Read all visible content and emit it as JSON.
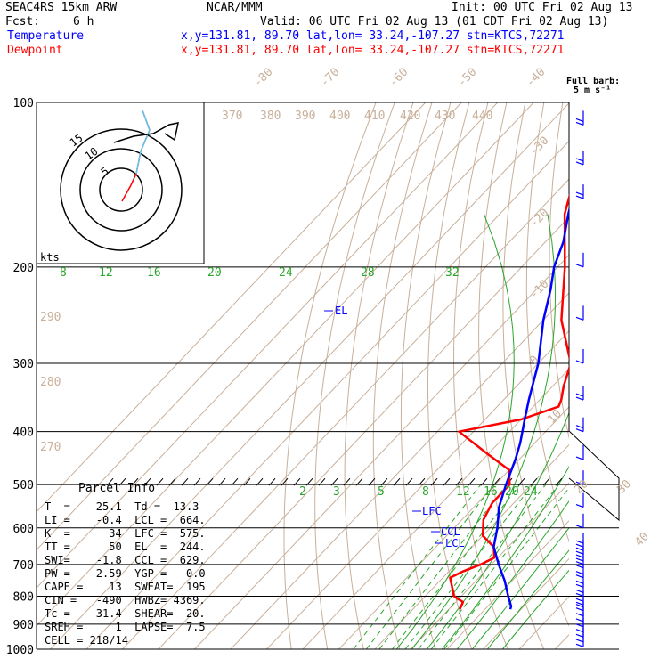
{
  "header": {
    "model": "SEAC4RS 15km ARW",
    "center": "NCAR/MMM",
    "init": "Init: 00 UTC Fri 02 Aug 13",
    "fcst_label": "Fcst:",
    "fcst_value": "6 h",
    "valid": "Valid: 06 UTC Fri 02 Aug 13 (01 CDT Fri 02 Aug 13)"
  },
  "legend": {
    "temperature_label": "Temperature",
    "dewpoint_label": "Dewpoint",
    "temperature_info": "x,y=131.81, 89.70   lat,lon= 33.24,-107.27   stn=KTCS,72271",
    "dewpoint_info": "x,y=131.81, 89.70   lat,lon= 33.24,-107.27   stn=KTCS,72271",
    "temperature_color": "#0000ff",
    "dewpoint_color": "#ff0000"
  },
  "wind_key": {
    "line1": "Full barb:",
    "line2": "5 m s⁻¹"
  },
  "hodograph": {
    "units": "kts",
    "ring_labels": [
      "5",
      "10",
      "15"
    ]
  },
  "parcel_info": {
    "title": "Parcel Info",
    "rows": [
      "T  =    25.1  Td =  13.3",
      "LI =    -0.4  LCL =  664.",
      "K  =      34  LFC =  575.",
      "TT =      50  EL  =  244.",
      "SWI=    -1.8  CCL =  629.",
      "PW =    2.59  YGP =   0.0",
      "CAPE =    13  SWEAT=  195",
      "CIN =   -490  HWBZ= 4369.",
      "Tc =    31.4  SHEAR=  20.",
      "SREH =     1  LAPSE=  7.5",
      "CELL = 218/14"
    ]
  },
  "level_markers": {
    "el": "EL",
    "lfc": "LFC",
    "ccl": "CCL",
    "lcl": "LCL"
  },
  "chart_data": {
    "type": "line",
    "title": "",
    "yaxis": {
      "scale": "log",
      "reversed": true,
      "range": [
        1000,
        100
      ],
      "ticks": [
        100,
        200,
        300,
        400,
        500,
        600,
        700,
        800,
        900,
        1000
      ]
    },
    "isotherm_labels": [
      "-80",
      "-70",
      "-60",
      "-50",
      "-40",
      "-30",
      "-20",
      "-10",
      "0",
      "10",
      "20",
      "30",
      "40"
    ],
    "dry_adiabat_labels": [
      "370",
      "380",
      "390",
      "400",
      "410",
      "420",
      "430",
      "440",
      "290",
      "280",
      "270"
    ],
    "mixing_ratio_labels": [
      "8",
      "12",
      "16",
      "20",
      "24",
      "28",
      "32"
    ],
    "lower_mixing_ratio_labels": [
      "2",
      "3",
      "5",
      "8",
      "12",
      "16",
      "20",
      "24"
    ],
    "series": [
      {
        "name": "Temperature",
        "pressure": [
          845,
          835,
          800,
          750,
          700,
          650,
          600,
          550,
          500,
          450,
          420,
          380,
          350,
          300,
          250,
          220,
          200,
          180,
          160,
          150,
          140,
          130,
          120,
          110,
          105
        ],
        "values": [
          27,
          26.5,
          23,
          18,
          12,
          6,
          2,
          -3,
          -7,
          -11,
          -14,
          -19,
          -23,
          -30,
          -40,
          -46,
          -51,
          -55,
          -61,
          -64,
          -67,
          -69,
          -71,
          -73,
          -74
        ]
      },
      {
        "name": "Dewpoint",
        "pressure": [
          845,
          820,
          810,
          800,
          740,
          720,
          700,
          680,
          650,
          620,
          580,
          540,
          500,
          470,
          440,
          400,
          380,
          360,
          350,
          330,
          300,
          250,
          200,
          160,
          140,
          130,
          115,
          105
        ],
        "values": [
          13,
          12,
          10,
          8,
          2,
          4,
          7,
          9,
          6,
          0,
          -4,
          -6,
          -6,
          -10,
          -20,
          -34,
          -20,
          -13,
          -14,
          -17,
          -21,
          -35,
          -48,
          -62,
          -68,
          -72,
          -75,
          -77
        ]
      }
    ],
    "wind_barbs": {
      "units": "m s-1",
      "pressure": [
        990,
        970,
        950,
        930,
        910,
        890,
        870,
        850,
        830,
        800,
        770,
        740,
        710,
        690,
        670,
        650,
        600,
        550,
        500,
        450,
        400,
        350,
        300,
        250,
        200,
        150,
        130,
        110
      ],
      "speed": [
        2,
        2,
        2,
        2,
        2,
        3,
        4,
        6,
        5,
        5,
        5,
        5,
        5,
        5,
        5,
        5,
        4,
        4,
        3,
        4,
        5,
        5,
        4,
        1,
        2,
        5,
        6,
        7
      ]
    },
    "levels": {
      "EL": 244,
      "LFC": 575,
      "CCL": 629,
      "LCL": 664
    }
  }
}
